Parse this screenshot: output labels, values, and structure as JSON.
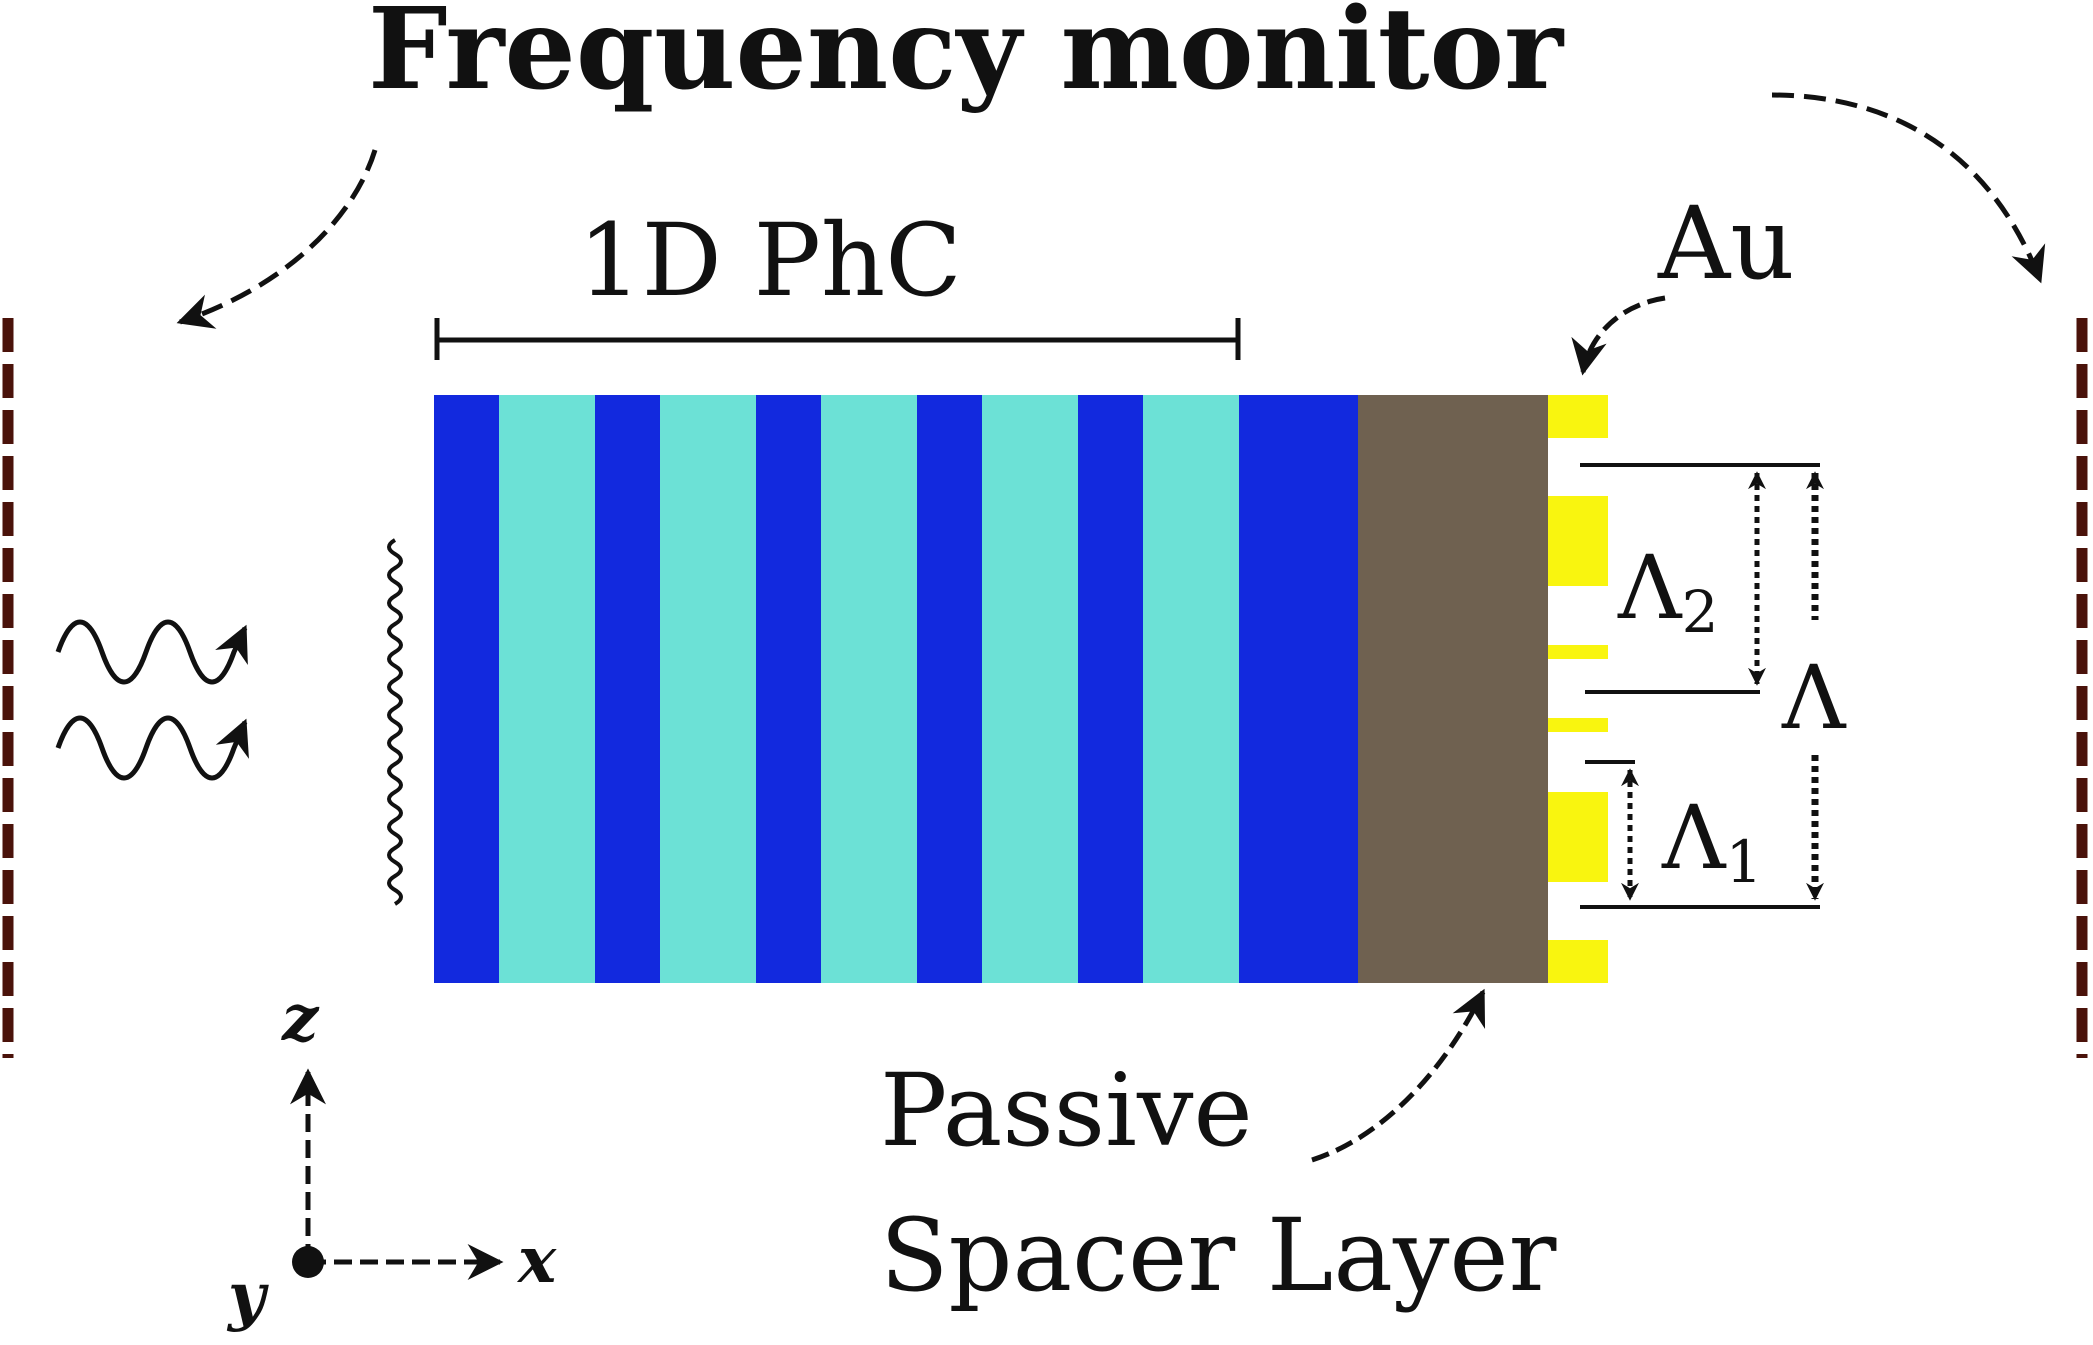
{
  "diagram": {
    "title": "Frequency monitor",
    "phc_label": "1D PhC",
    "au_label": "Au",
    "spacer_label_line1": "Passive",
    "spacer_label_line2": "Spacer Layer",
    "lambda_label": "Λ",
    "lambda1": {
      "symbol": "Λ",
      "subscript": "1"
    },
    "lambda2": {
      "symbol": "Λ",
      "subscript": "2"
    },
    "axes": {
      "z": "z",
      "x": "x",
      "y": "y"
    },
    "colors": {
      "dark_blue_layer": "#1229DE",
      "light_cyan_layer": "#6CE1D6",
      "spacer": "#6F6150",
      "gold": "#F9F50F",
      "monitor": "#4A120A",
      "line": "#111111"
    }
  }
}
